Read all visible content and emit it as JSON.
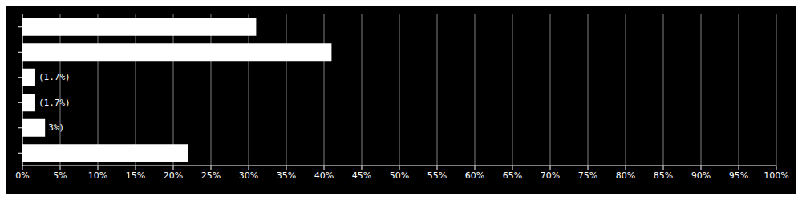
{
  "chart_data": {
    "type": "bar",
    "orientation": "horizontal",
    "categories": [
      null,
      null,
      null,
      null,
      null,
      null
    ],
    "values": [
      31,
      41,
      1.7,
      1.7,
      3,
      22
    ],
    "value_labels": [
      null,
      null,
      "(1.7%)",
      "(1.7%)",
      "3%)",
      null
    ],
    "color": "#ffffff",
    "xlim": [
      0,
      100
    ],
    "xticks": [
      {
        "value": 0,
        "label": "0%"
      },
      {
        "value": 5,
        "label": "5%"
      },
      {
        "value": 10,
        "label": "10%"
      },
      {
        "value": 15,
        "label": "15%"
      },
      {
        "value": 20,
        "label": "20%"
      },
      {
        "value": 25,
        "label": "25%"
      },
      {
        "value": 30,
        "label": "30%"
      },
      {
        "value": 35,
        "label": "35%"
      },
      {
        "value": 40,
        "label": "40%"
      },
      {
        "value": 45,
        "label": "45%"
      },
      {
        "value": 50,
        "label": "50%"
      },
      {
        "value": 55,
        "label": "55%"
      },
      {
        "value": 60,
        "label": "60%"
      },
      {
        "value": 65,
        "label": "65%"
      },
      {
        "value": 70,
        "label": "70%"
      },
      {
        "value": 75,
        "label": "75%"
      },
      {
        "value": 80,
        "label": "80%"
      },
      {
        "value": 85,
        "label": "85%"
      },
      {
        "value": 90,
        "label": "90%"
      },
      {
        "value": 95,
        "label": "95%"
      },
      {
        "value": 100,
        "label": "100%"
      }
    ],
    "grid": true,
    "tick_labels": "x"
  }
}
